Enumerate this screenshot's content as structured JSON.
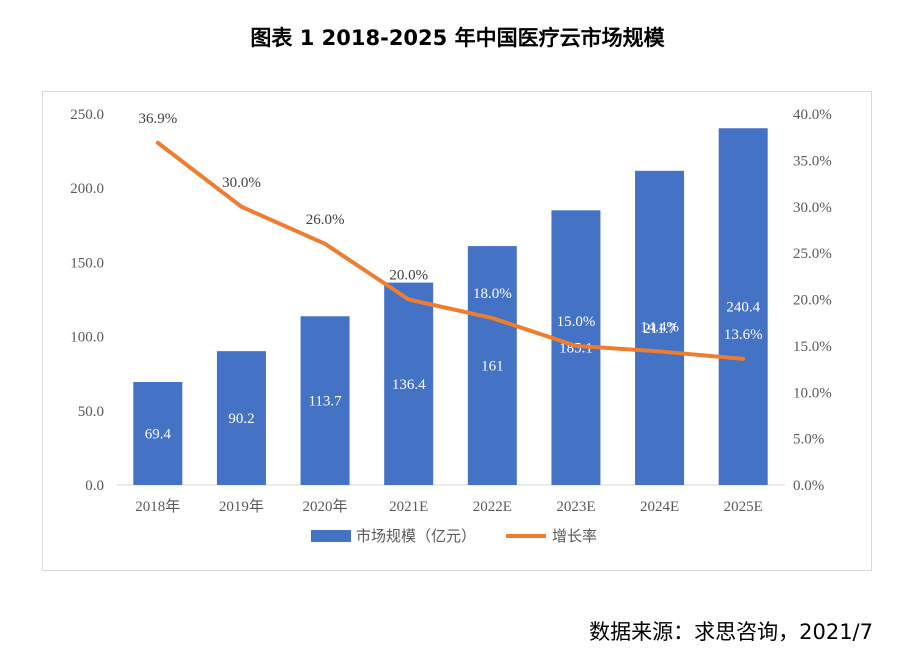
{
  "title": "图表 1 2018-2025 年中国医疗云市场规模",
  "source": "数据来源：求思咨询，2021/7",
  "colors": {
    "bar": "#4472c4",
    "line": "#ed7d31",
    "axis": "#d9d9d9",
    "text": "#595959",
    "bar_label": "#ffffff",
    "line_label": "#404040"
  },
  "chart_data": {
    "type": "bar+line",
    "categories": [
      "2018年",
      "2019年",
      "2020年",
      "2021E",
      "2022E",
      "2023E",
      "2024E",
      "2025E"
    ],
    "series": [
      {
        "name": "市场规模（亿元）",
        "type": "bar",
        "axis": "left",
        "values": [
          69.4,
          90.2,
          113.7,
          136.4,
          161,
          185.1,
          211.7,
          240.4
        ],
        "labels": [
          "69.4",
          "90.2",
          "113.7",
          "136.4",
          "161",
          "185.1",
          "211.7",
          "240.4"
        ]
      },
      {
        "name": "增长率",
        "type": "line",
        "axis": "right",
        "values": [
          36.9,
          30.0,
          26.0,
          20.0,
          18.0,
          15.0,
          14.4,
          13.6
        ],
        "labels": [
          "36.9%",
          "30.0%",
          "26.0%",
          "20.0%",
          "18.0%",
          "15.0%",
          "14.4%",
          "13.6%"
        ]
      }
    ],
    "y_left": {
      "min": 0,
      "max": 250,
      "ticks": [
        "0.0",
        "50.0",
        "100.0",
        "150.0",
        "200.0",
        "250.0"
      ]
    },
    "y_right": {
      "min": 0,
      "max": 40,
      "ticks": [
        "0.0%",
        "5.0%",
        "10.0%",
        "15.0%",
        "20.0%",
        "25.0%",
        "30.0%",
        "35.0%",
        "40.0%"
      ]
    },
    "legend": [
      "市场规模（亿元）",
      "增长率"
    ],
    "legend_position": "bottom"
  }
}
